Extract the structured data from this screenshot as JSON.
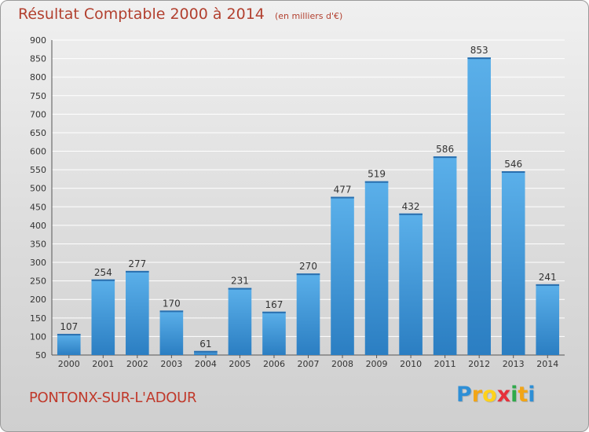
{
  "header": {
    "title": "Résultat Comptable 2000 à 2014",
    "subtitle": "(en milliers d'€)"
  },
  "footer": {
    "commune": "PONTONX-SUR-L'ADOUR",
    "logo_letters": [
      "P",
      "r",
      "o",
      "x",
      "i",
      "t",
      "i"
    ],
    "logo_colors": [
      "#2e8fd6",
      "#f2a516",
      "#ffd21a",
      "#e6303a",
      "#2eaa4a",
      "#f2a516",
      "#2e8fd6"
    ]
  },
  "colors": {
    "title": "#b2402f",
    "bar_top": "#5bb0ea",
    "bar_bottom": "#2b7ec2"
  },
  "chart_data": {
    "type": "bar",
    "title": "Résultat Comptable 2000 à 2014",
    "subtitle": "(en milliers d'€)",
    "categories": [
      "2000",
      "2001",
      "2002",
      "2003",
      "2004",
      "2005",
      "2006",
      "2007",
      "2008",
      "2009",
      "2010",
      "2011",
      "2012",
      "2013",
      "2014"
    ],
    "values": [
      107,
      254,
      277,
      170,
      61,
      231,
      167,
      270,
      477,
      519,
      432,
      586,
      853,
      546,
      241
    ],
    "ylim": [
      50,
      900
    ],
    "yticks": [
      50,
      100,
      150,
      200,
      250,
      300,
      350,
      400,
      450,
      500,
      550,
      600,
      650,
      700,
      750,
      800,
      850,
      900
    ],
    "grid": true,
    "data_labels": true
  }
}
